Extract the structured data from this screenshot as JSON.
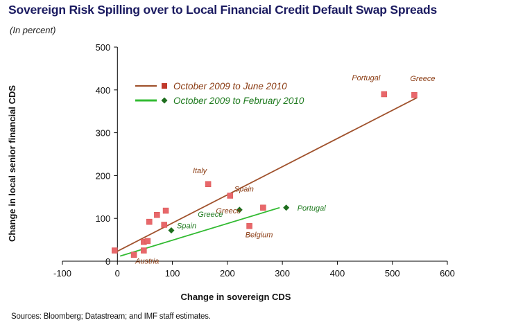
{
  "title": "Sovereign Risk Spilling over to Local Financial Credit Default Swap Spreads",
  "subtitle": "(In percent)",
  "source": "Sources: Bloomberg; Datastream; and IMF staff estimates.",
  "colors": {
    "brown": "#a0522d",
    "marker_red": "#e8676b",
    "green": "#33bb33",
    "green_marker": "#1e6e1e",
    "axis": "#000000"
  },
  "chart_data": {
    "type": "scatter",
    "title": "Sovereign Risk Spilling over to Local Financial Credit Default Swap Spreads",
    "subtitle": "(In percent)",
    "xlabel": "Change in sovereign CDS",
    "ylabel": "Change in local senior financial CDS",
    "xlim": [
      -100,
      600
    ],
    "ylim": [
      0,
      500
    ],
    "xticks": [
      -100,
      0,
      100,
      200,
      300,
      400,
      500,
      600
    ],
    "yticks": [
      0,
      100,
      200,
      300,
      400,
      500
    ],
    "xtick_labels": [
      "-100",
      "0",
      "100",
      "200",
      "300",
      "400",
      "500",
      "600"
    ],
    "ytick_labels": [
      "0",
      "100",
      "200",
      "300",
      "400",
      "500"
    ],
    "grid": false,
    "legend_position": "top-left",
    "series": [
      {
        "name": "October 2009  to  June 2010",
        "color": "#a0522d",
        "marker": "square",
        "points": [
          {
            "x": -5,
            "y": 25,
            "label": ""
          },
          {
            "x": 30,
            "y": 15,
            "label": "Austria"
          },
          {
            "x": 48,
            "y": 25,
            "label": ""
          },
          {
            "x": 48,
            "y": 45,
            "label": ""
          },
          {
            "x": 55,
            "y": 47,
            "label": ""
          },
          {
            "x": 58,
            "y": 92,
            "label": ""
          },
          {
            "x": 72,
            "y": 108,
            "label": ""
          },
          {
            "x": 85,
            "y": 85,
            "label": ""
          },
          {
            "x": 88,
            "y": 118,
            "label": ""
          },
          {
            "x": 165,
            "y": 180,
            "label": "Italy"
          },
          {
            "x": 205,
            "y": 153,
            "label": "Spain"
          },
          {
            "x": 240,
            "y": 82,
            "label": "Belgium"
          },
          {
            "x": 265,
            "y": 125,
            "label": "Greece"
          },
          {
            "x": 485,
            "y": 390,
            "label": "Portugal"
          },
          {
            "x": 540,
            "y": 388,
            "label": "Greece"
          }
        ],
        "trendline": [
          {
            "x": -5,
            "y": 20
          },
          {
            "x": 545,
            "y": 382
          }
        ]
      },
      {
        "name": "October 2009  to  February 2010",
        "color": "#33bb33",
        "marker": "diamond",
        "points": [
          {
            "x": 98,
            "y": 72,
            "label": "Spain"
          },
          {
            "x": 222,
            "y": 120,
            "label": "Greece"
          },
          {
            "x": 307,
            "y": 125,
            "label": "Portugal"
          }
        ],
        "trendline": [
          {
            "x": 5,
            "y": 12
          },
          {
            "x": 295,
            "y": 125
          }
        ]
      }
    ]
  }
}
